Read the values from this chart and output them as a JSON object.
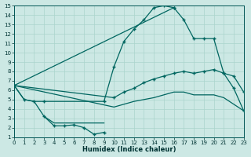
{
  "xlabel": "Humidex (Indice chaleur)",
  "bg_color": "#cce8e4",
  "grid_color": "#aad4cc",
  "line_color": "#006660",
  "xlim": [
    0,
    23
  ],
  "ylim": [
    1,
    15
  ],
  "xticks": [
    0,
    1,
    2,
    3,
    4,
    5,
    6,
    7,
    8,
    9,
    10,
    11,
    12,
    13,
    14,
    15,
    16,
    17,
    18,
    19,
    20,
    21,
    22,
    23
  ],
  "yticks": [
    1,
    2,
    3,
    4,
    5,
    6,
    7,
    8,
    9,
    10,
    11,
    12,
    13,
    14,
    15
  ],
  "curve1_x": [
    0,
    1,
    2,
    3,
    9,
    10,
    11,
    12,
    13,
    14,
    15,
    16
  ],
  "curve1_y": [
    6.5,
    5.0,
    4.8,
    4.8,
    4.8,
    8.5,
    11.2,
    12.5,
    13.5,
    14.8,
    15.0,
    14.8
  ],
  "curve2_x": [
    0,
    16,
    17,
    18,
    19,
    20,
    21,
    22,
    23
  ],
  "curve2_y": [
    6.5,
    14.8,
    13.5,
    11.5,
    11.5,
    11.5,
    7.8,
    7.5,
    5.8
  ],
  "curve3_x": [
    0,
    1,
    2,
    3,
    4,
    5,
    6,
    7,
    8,
    9
  ],
  "curve3_y": [
    6.5,
    5.0,
    4.8,
    3.2,
    2.5,
    2.5,
    2.5,
    2.5,
    2.5,
    2.5
  ],
  "curve4_x": [
    3,
    4,
    5,
    6,
    7,
    8,
    9
  ],
  "curve4_y": [
    3.2,
    2.2,
    2.2,
    2.3,
    2.0,
    1.3,
    1.5
  ],
  "curve5_x": [
    0,
    10,
    11,
    12,
    13,
    14,
    15,
    16,
    17,
    18,
    19,
    20,
    21,
    22,
    23
  ],
  "curve5_y": [
    6.5,
    5.2,
    5.8,
    6.2,
    6.8,
    7.2,
    7.5,
    7.8,
    8.0,
    7.8,
    8.0,
    8.2,
    7.8,
    6.2,
    3.8
  ],
  "curve6_x": [
    0,
    10,
    11,
    12,
    13,
    14,
    15,
    16,
    17,
    18,
    19,
    20,
    21,
    22,
    23
  ],
  "curve6_y": [
    6.5,
    4.2,
    4.5,
    4.8,
    5.0,
    5.2,
    5.5,
    5.8,
    5.8,
    5.5,
    5.5,
    5.5,
    5.2,
    4.5,
    3.8
  ]
}
